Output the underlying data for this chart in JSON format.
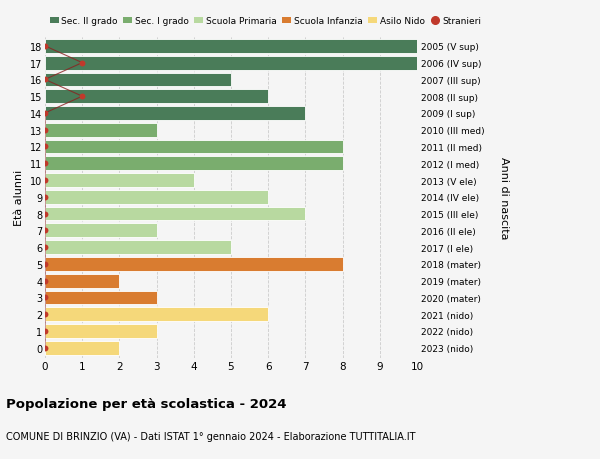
{
  "ages": [
    18,
    17,
    16,
    15,
    14,
    13,
    12,
    11,
    10,
    9,
    8,
    7,
    6,
    5,
    4,
    3,
    2,
    1,
    0
  ],
  "right_labels": [
    "2005 (V sup)",
    "2006 (IV sup)",
    "2007 (III sup)",
    "2008 (II sup)",
    "2009 (I sup)",
    "2010 (III med)",
    "2011 (II med)",
    "2012 (I med)",
    "2013 (V ele)",
    "2014 (IV ele)",
    "2015 (III ele)",
    "2016 (II ele)",
    "2017 (I ele)",
    "2018 (mater)",
    "2019 (mater)",
    "2020 (mater)",
    "2021 (nido)",
    "2022 (nido)",
    "2023 (nido)"
  ],
  "bar_values": [
    10,
    10,
    5,
    6,
    7,
    3,
    8,
    8,
    4,
    6,
    7,
    3,
    5,
    8,
    2,
    3,
    6,
    3,
    2
  ],
  "bar_colors": [
    "#4a7c59",
    "#4a7c59",
    "#4a7c59",
    "#4a7c59",
    "#4a7c59",
    "#7aad6e",
    "#7aad6e",
    "#7aad6e",
    "#b8d9a0",
    "#b8d9a0",
    "#b8d9a0",
    "#b8d9a0",
    "#b8d9a0",
    "#d97c30",
    "#d97c30",
    "#d97c30",
    "#f5d87a",
    "#f5d87a",
    "#f5d87a"
  ],
  "stranieri_x": [
    0,
    1,
    0,
    1,
    0,
    0,
    0,
    0,
    0,
    0,
    0,
    0,
    0,
    0,
    0,
    0,
    0,
    0,
    0
  ],
  "title": "Popolazione per età scolastica - 2024",
  "subtitle": "COMUNE DI BRINZIO (VA) - Dati ISTAT 1° gennaio 2024 - Elaborazione TUTTITALIA.IT",
  "ylabel_left": "Età alunni",
  "ylabel_right": "Anni di nascita",
  "legend_labels": [
    "Sec. II grado",
    "Sec. I grado",
    "Scuola Primaria",
    "Scuola Infanzia",
    "Asilo Nido",
    "Stranieri"
  ],
  "legend_colors": [
    "#4a7c59",
    "#7aad6e",
    "#b8d9a0",
    "#d97c30",
    "#f5d87a",
    "#c0392b"
  ],
  "bg_color": "#f5f5f5",
  "grid_color": "#cccccc",
  "bar_height": 0.82,
  "xlim": [
    0,
    10
  ],
  "stranieri_color": "#c0392b",
  "stranieri_line_color": "#8B2020"
}
